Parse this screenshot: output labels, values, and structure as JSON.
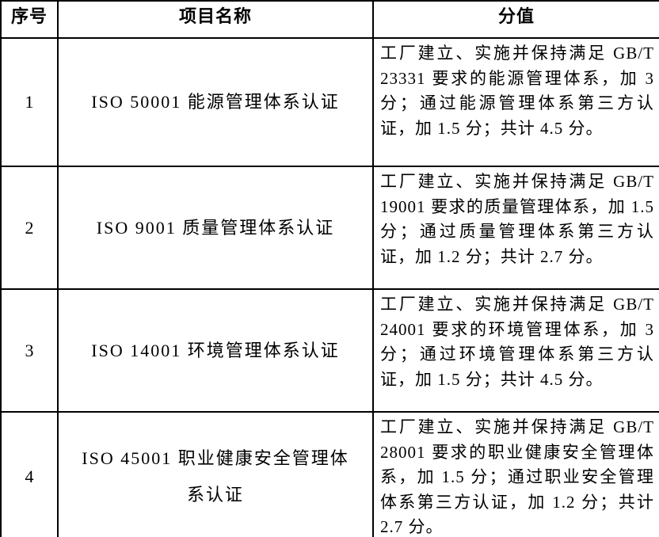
{
  "colors": {
    "border": "#000000",
    "text": "#000000",
    "background": "#ffffff"
  },
  "table": {
    "headers": [
      "序号",
      "项目名称",
      "分值"
    ],
    "rows": [
      {
        "no": "1",
        "name": "ISO 50001 能源管理体系认证",
        "score": "工厂建立、实施并保持满足 GB/T 23331 要求的能源管理体系，加 3 分；通过能源管理体系第三方认证，加 1.5 分；共计 4.5 分。"
      },
      {
        "no": "2",
        "name": "ISO 9001 质量管理体系认证",
        "score": "工厂建立、实施并保持满足 GB/T 19001 要求的质量管理体系，加 1.5 分；通过质量管理体系第三方认证，加 1.2 分；共计 2.7 分。"
      },
      {
        "no": "3",
        "name": "ISO 14001 环境管理体系认证",
        "score": "工厂建立、实施并保持满足 GB/T 24001 要求的环境管理体系，加 3 分；通过环境管理体系第三方认证，加 1.5 分；共计 4.5 分。"
      },
      {
        "no": "4",
        "name": "ISO 45001 职业健康安全管理体系认证",
        "score": "工厂建立、实施并保持满足 GB/T 28001 要求的职业健康安全管理体系，加 1.5 分；通过职业安全管理体系第三方认证，加 1.2 分；共计 2.7 分。"
      }
    ]
  }
}
